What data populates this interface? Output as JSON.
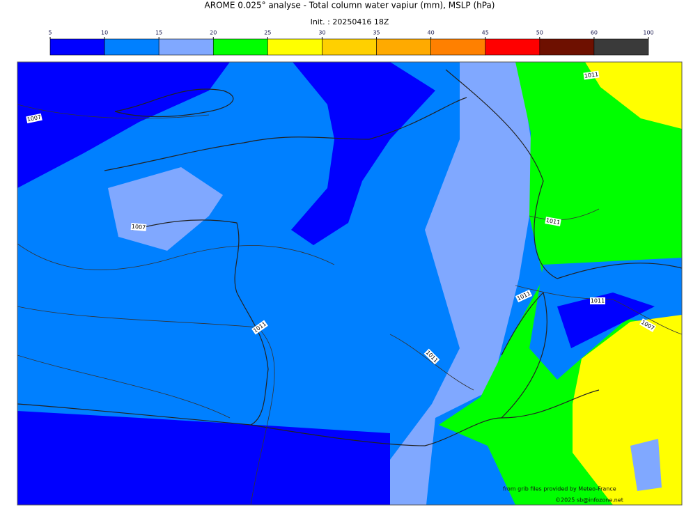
{
  "title": "AROME 0.025° analyse - Total column water vapiur (mm), MSLP (hPa)",
  "subtitle": "Init. : 20250416 18Z",
  "colorbar": {
    "levels": [
      5,
      10,
      15,
      20,
      25,
      30,
      35,
      40,
      45,
      50,
      60,
      100
    ],
    "colors": [
      "#0000ff",
      "#0080ff",
      "#80a8ff",
      "#00ff00",
      "#ffff00",
      "#ffd000",
      "#ffaa00",
      "#ff8000",
      "#ff0000",
      "#6e1000",
      "#3a3a3a"
    ]
  },
  "isobar_labels": [
    1007,
    1011,
    1007,
    1011,
    1011,
    1011,
    1007,
    1011,
    1011
  ],
  "credits": [
    "from grib files provided by Meteo-France",
    "©2025 sb@infozone.net"
  ]
}
